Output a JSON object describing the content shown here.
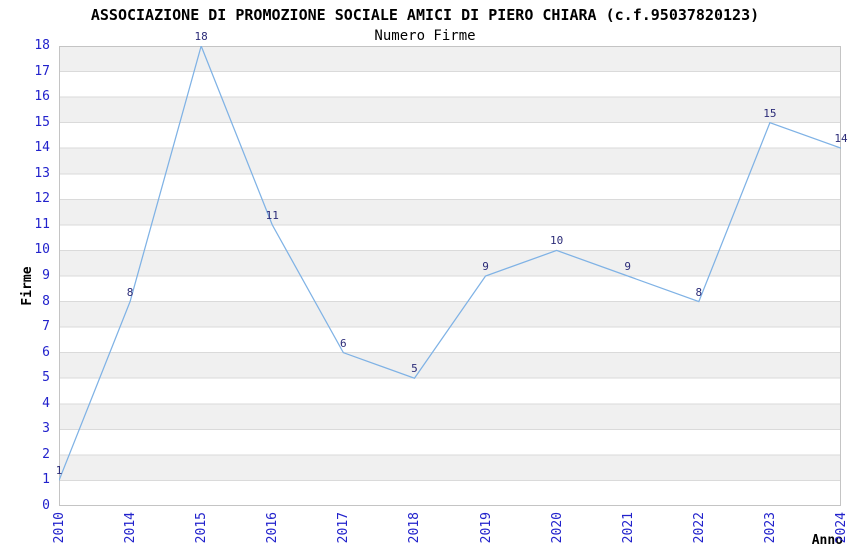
{
  "chart_data": {
    "type": "line",
    "title": "ASSOCIAZIONE DI PROMOZIONE SOCIALE AMICI DI PIERO CHIARA (c.f.95037820123)",
    "subtitle": "Numero Firme",
    "xlabel": "Anno",
    "ylabel": "Firme",
    "categories": [
      "2010",
      "2014",
      "2015",
      "2016",
      "2017",
      "2018",
      "2019",
      "2020",
      "2021",
      "2022",
      "2023",
      "2024"
    ],
    "series": [
      {
        "name": "Numero Firme",
        "values": [
          1,
          8,
          18,
          11,
          6,
          5,
          9,
          10,
          9,
          8,
          15,
          14
        ]
      }
    ],
    "ylim": [
      0,
      18
    ],
    "yticks": [
      0,
      1,
      2,
      3,
      4,
      5,
      6,
      7,
      8,
      9,
      10,
      11,
      12,
      13,
      14,
      15,
      16,
      17,
      18
    ],
    "grid": "horizontal",
    "alternating_bands": true,
    "data_labels_visible": true,
    "markers": "none",
    "legend_position": "none"
  },
  "colors": {
    "line": "#7FB2E5",
    "tick_label": "#2222CC",
    "data_label": "#2B2B78",
    "band_fill": "#F0F0F0",
    "gridline": "#DADADA",
    "plot_border": "#C4C4C4",
    "title_text": "#000000",
    "background": "#FFFFFF"
  }
}
